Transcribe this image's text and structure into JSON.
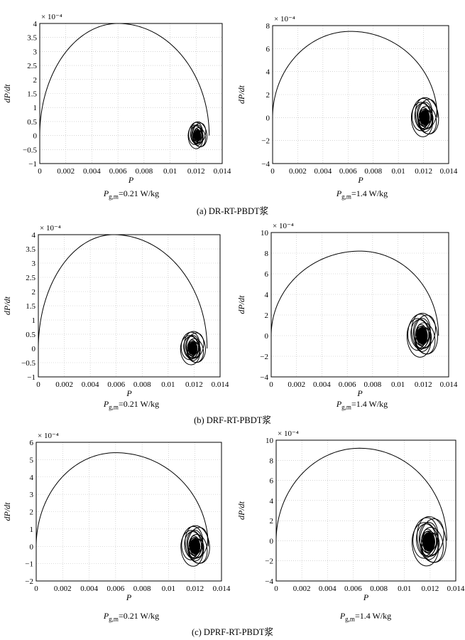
{
  "chart_data": [
    {
      "type": "line",
      "panel": "a-left",
      "xlabel": "P",
      "ylabel": "dP/dt",
      "exponent": "× 10⁻⁴",
      "xlim": [
        0,
        0.014
      ],
      "ylim": [
        -1,
        4
      ],
      "xticks": [
        "0",
        "0.002",
        "0.004",
        "0.006",
        "0.008",
        "0.01",
        "0.012",
        "0.014"
      ],
      "yticks": [
        "−1",
        "−0.5",
        "0",
        "0.5",
        "1",
        "1.5",
        "2",
        "2.5",
        "3",
        "3.5",
        "4"
      ],
      "grid": true,
      "series": [
        {
          "peak": [
            0.006,
            4.0
          ],
          "end_x": 0.013,
          "cluster_center": [
            0.0121,
            0.0
          ],
          "cluster_radius": [
            0.0006,
            0.45
          ]
        }
      ],
      "note": {
        "prefix": "P",
        "sub": "g,m",
        "text": "=0.21 W/kg"
      }
    },
    {
      "type": "line",
      "panel": "a-right",
      "xlabel": "P",
      "ylabel": "dP/dt",
      "exponent": "× 10⁻⁴",
      "xlim": [
        0,
        0.014
      ],
      "ylim": [
        -4,
        8
      ],
      "xticks": [
        "0",
        "0.002",
        "0.004",
        "0.006",
        "0.008",
        "0.01",
        "0.012",
        "0.014"
      ],
      "yticks": [
        "−4",
        "−2",
        "0",
        "2",
        "4",
        "6",
        "8"
      ],
      "grid": true,
      "series": [
        {
          "peak": [
            0.0062,
            7.5
          ],
          "end_x": 0.0131,
          "cluster_center": [
            0.0121,
            0.0
          ],
          "cluster_radius": [
            0.0009,
            1.6
          ]
        }
      ],
      "note": {
        "prefix": "P",
        "sub": "g,m",
        "text": "=1.4 W/kg"
      }
    },
    {
      "type": "line",
      "panel": "b-left",
      "xlabel": "P",
      "ylabel": "dP/dt",
      "exponent": "× 10⁻⁴",
      "xlim": [
        0,
        0.014
      ],
      "ylim": [
        -1,
        4
      ],
      "xticks": [
        "0",
        "0.002",
        "0.004",
        "0.006",
        "0.008",
        "0.01",
        "0.012",
        "0.014"
      ],
      "yticks": [
        "−1",
        "−0.5",
        "0",
        "0.5",
        "1",
        "1.5",
        "2",
        "2.5",
        "3",
        "3.5",
        "4"
      ],
      "grid": true,
      "series": [
        {
          "peak": [
            0.0058,
            4.0
          ],
          "end_x": 0.013,
          "cluster_center": [
            0.0119,
            0.0
          ],
          "cluster_radius": [
            0.0008,
            0.55
          ]
        }
      ],
      "note": {
        "prefix": "P",
        "sub": "g,m",
        "text": "=0.21 W/kg"
      }
    },
    {
      "type": "line",
      "panel": "b-right",
      "xlabel": "P",
      "ylabel": "dP/dt",
      "exponent": "× 10⁻⁴",
      "xlim": [
        0,
        0.014
      ],
      "ylim": [
        -4,
        10
      ],
      "xticks": [
        "0",
        "0.002",
        "0.004",
        "0.006",
        "0.008",
        "0.01",
        "0.012",
        "0.014"
      ],
      "yticks": [
        "−4",
        "−2",
        "0",
        "2",
        "4",
        "6",
        "8",
        "10"
      ],
      "grid": true,
      "series": [
        {
          "peak": [
            0.007,
            8.2
          ],
          "end_x": 0.0132,
          "cluster_center": [
            0.0119,
            0.0
          ],
          "cluster_radius": [
            0.001,
            2.0
          ]
        }
      ],
      "note": {
        "prefix": "P",
        "sub": "g,m",
        "text": "=1.4 W/kg"
      }
    },
    {
      "type": "line",
      "panel": "c-left",
      "xlabel": "P",
      "ylabel": "dP/dt",
      "exponent": "× 10⁻⁴",
      "xlim": [
        0,
        0.014
      ],
      "ylim": [
        -2,
        6
      ],
      "xticks": [
        "0",
        "0.002",
        "0.004",
        "0.006",
        "0.008",
        "0.01",
        "0.012",
        "0.014"
      ],
      "yticks": [
        "−2",
        "−1",
        "0",
        "1",
        "2",
        "3",
        "4",
        "5",
        "6"
      ],
      "grid": true,
      "series": [
        {
          "peak": [
            0.006,
            5.4
          ],
          "end_x": 0.013,
          "cluster_center": [
            0.012,
            0.0
          ],
          "cluster_radius": [
            0.0009,
            1.1
          ]
        }
      ],
      "note": {
        "prefix": "P",
        "sub": "g,m",
        "text": "=0.21 W/kg"
      }
    },
    {
      "type": "line",
      "panel": "c-right",
      "xlabel": "P",
      "ylabel": "dP/dt",
      "exponent": "× 10⁻⁴",
      "xlim": [
        0,
        0.014
      ],
      "ylim": [
        -4,
        10
      ],
      "xticks": [
        "0",
        "0.002",
        "0.004",
        "0.006",
        "0.008",
        "0.01",
        "0.012",
        "0.014"
      ],
      "yticks": [
        "−4",
        "−2",
        "0",
        "2",
        "4",
        "6",
        "8",
        "10"
      ],
      "grid": true,
      "series": [
        {
          "peak": [
            0.0065,
            9.2
          ],
          "end_x": 0.0133,
          "cluster_center": [
            0.0119,
            -0.1
          ],
          "cluster_radius": [
            0.0011,
            2.3
          ]
        }
      ],
      "note": {
        "prefix": "P",
        "sub": "g,m",
        "text": "=1.4 W/kg"
      }
    }
  ],
  "captions": {
    "a": "(a) DR-RT-PBDT浆",
    "b": "(b) DRF-RT-PBDT浆",
    "c": "(c) DPRF-RT-PBDT浆"
  }
}
